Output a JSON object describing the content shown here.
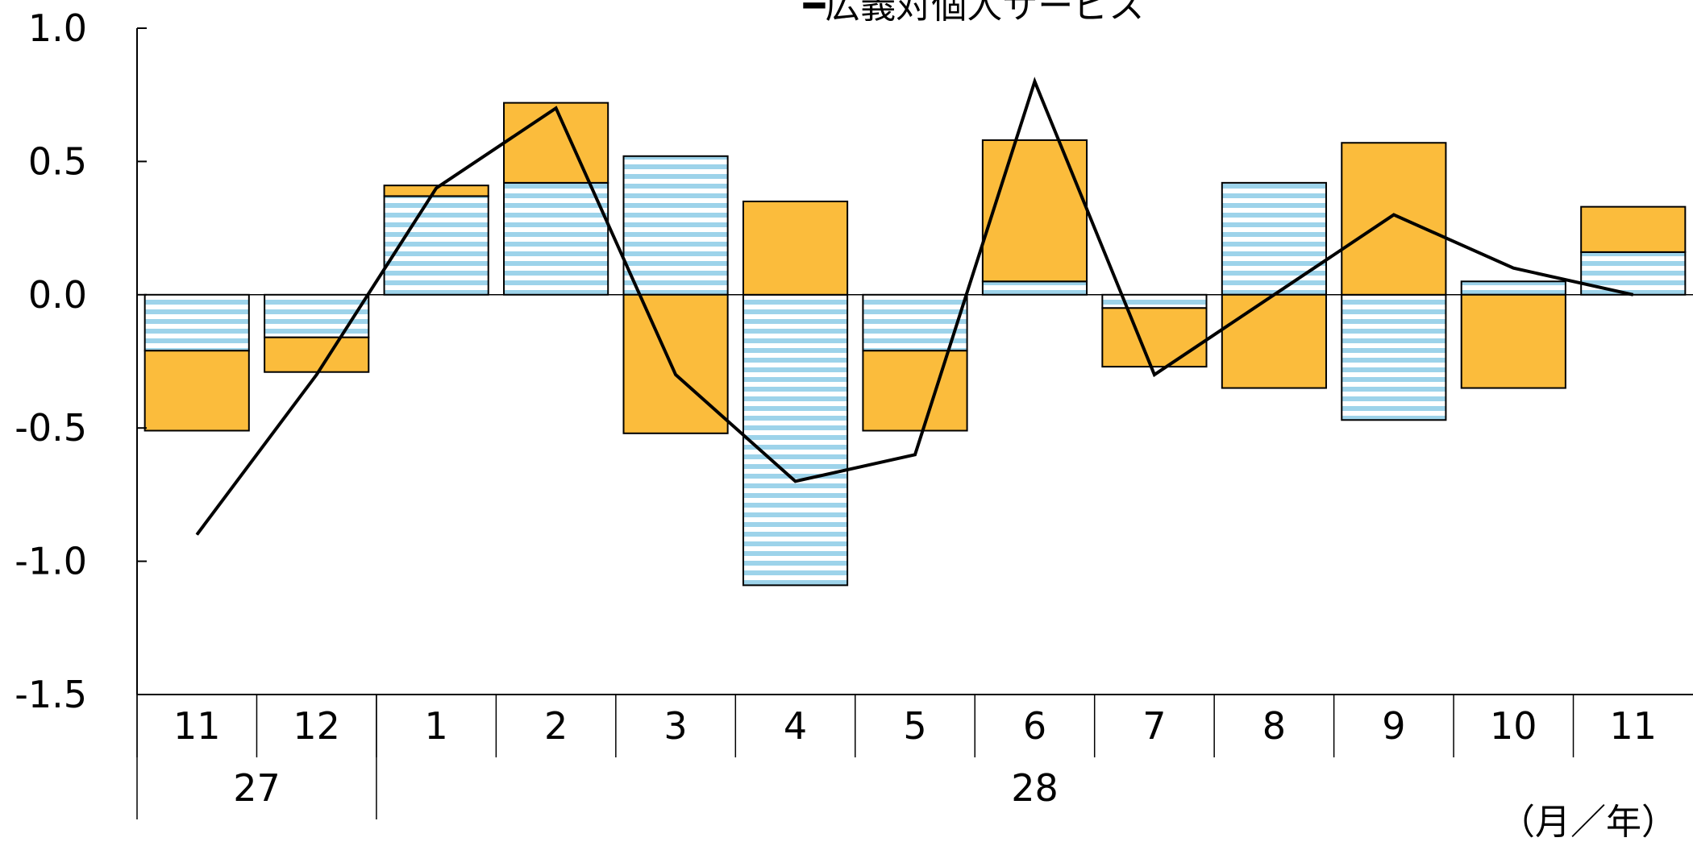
{
  "chart_data": {
    "type": "bar",
    "stacked": true,
    "title": "━広義対個人サービス",
    "xlabel": "",
    "ylabel": "",
    "unit_label": "（月／年）",
    "ylim": [
      -1.5,
      1.0
    ],
    "yticks": [
      1.0,
      0.5,
      0.0,
      -0.5,
      -1.0,
      -1.5
    ],
    "ytick_labels": [
      "1.0",
      "0.5",
      "0.0",
      "-0.5",
      "-1.0",
      "-1.5"
    ],
    "categories": [
      "11",
      "12",
      "1",
      "2",
      "3",
      "4",
      "5",
      "6",
      "7",
      "8",
      "9",
      "10",
      "11"
    ],
    "year_groups": [
      {
        "label": "27",
        "count": 2
      },
      {
        "label": "28",
        "count": 11
      }
    ],
    "grid": false,
    "series": [
      {
        "type": "bar",
        "style": "striped",
        "color": "#9dd3ea",
        "values": [
          -0.21,
          -0.16,
          0.37,
          0.42,
          0.52,
          -1.09,
          -0.21,
          0.05,
          -0.05,
          0.42,
          -0.47,
          0.05,
          0.16
        ]
      },
      {
        "type": "bar",
        "style": "solid",
        "color": "#fbbc3c",
        "values": [
          -0.3,
          -0.13,
          0.04,
          0.3,
          -0.52,
          0.35,
          -0.3,
          0.53,
          -0.22,
          -0.35,
          0.57,
          -0.35,
          0.17
        ]
      },
      {
        "type": "line",
        "color": "#000000",
        "values": [
          -0.9,
          -0.3,
          0.4,
          0.7,
          -0.3,
          -0.7,
          -0.6,
          0.8,
          -0.3,
          0.0,
          0.3,
          0.1,
          0.0
        ]
      }
    ]
  }
}
